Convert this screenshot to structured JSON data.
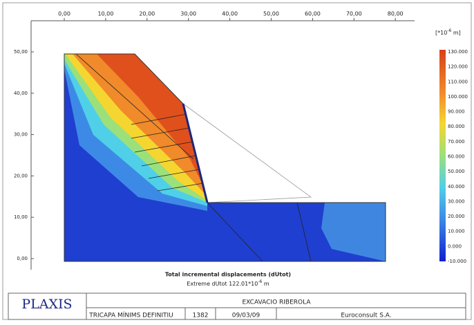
{
  "plot": {
    "x_axis_labels": [
      "0,00",
      "10,00",
      "20,00",
      "30,00",
      "40,00",
      "50,00",
      "60,00",
      "70,00",
      "80,00"
    ],
    "y_axis_labels": [
      "50,00",
      "40,00",
      "30,00",
      "20,00",
      "10,00",
      "0,00"
    ],
    "unit": {
      "prefix": "[*10",
      "exponent": "-6",
      "suffix": "m]"
    },
    "legend_labels": [
      "130.000",
      "120.000",
      "110.000",
      "100.000",
      "90.000",
      "80.000",
      "70.000",
      "60.000",
      "50.000",
      "40.000",
      "30.000",
      "20.000",
      "10.000",
      "0.000",
      "-10.000"
    ],
    "caption": "Total incremental displacements (dUtot)",
    "extreme": {
      "prefix": "Extreme dUtot 122.01*10",
      "exponent": "-6",
      "suffix": "m"
    }
  },
  "title_block": {
    "logo": "PLAXIS",
    "project": "EXCAVACIO RIBEROLA",
    "name": "TRICAPA MÍNIMS DEFINITIU",
    "step": "1382",
    "date": "09/03/09",
    "company": "Euroconsult S.A."
  }
}
